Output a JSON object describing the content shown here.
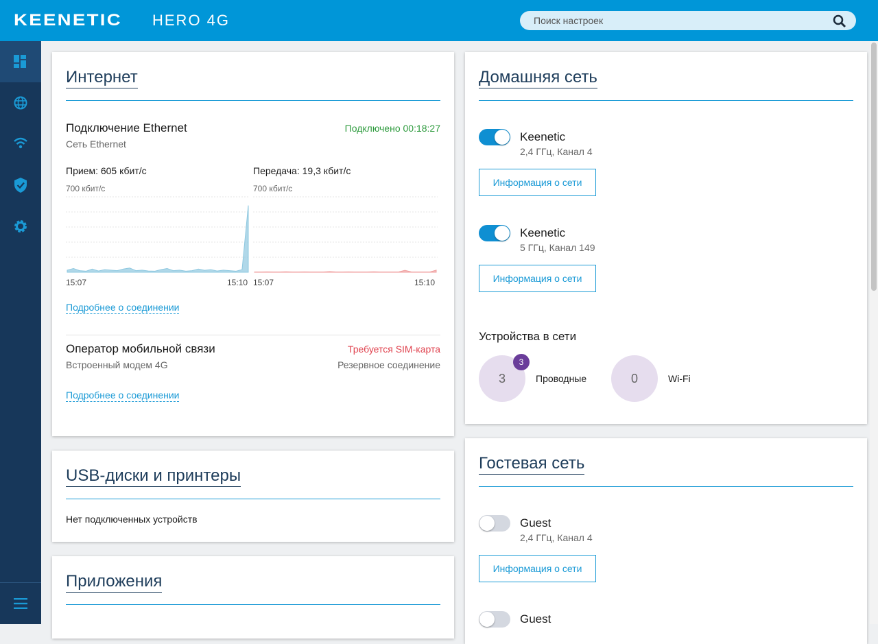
{
  "header": {
    "brand": "KEENETIC",
    "model": "HERO 4G",
    "search_placeholder": "Поиск настроек"
  },
  "internet": {
    "title": "Интернет",
    "ethernet": {
      "name": "Подключение Ethernet",
      "status": "Подключено 00:18:27",
      "subtitle": "Сеть Ethernet",
      "rx": {
        "label": "Прием: 605 кбит/с",
        "scale_label": "700 кбит/с",
        "x_start": "15:07",
        "x_end": "15:10",
        "ylim": [
          0,
          700
        ],
        "color": "#8ec8e0",
        "values": [
          20,
          35,
          15,
          10,
          30,
          12,
          25,
          20,
          15,
          30,
          40,
          15,
          20,
          12,
          10,
          25,
          35,
          15,
          20,
          10,
          15,
          30,
          18,
          25,
          12,
          20,
          15,
          10,
          25,
          620
        ]
      },
      "tx": {
        "label": "Передача: 19,3 кбит/с",
        "scale_label": "700 кбит/с",
        "x_start": "15:07",
        "x_end": "15:10",
        "ylim": [
          0,
          700
        ],
        "color": "#f0a0a0",
        "values": [
          3,
          3,
          4,
          3,
          3,
          5,
          3,
          3,
          4,
          3,
          3,
          3,
          6,
          3,
          3,
          4,
          3,
          3,
          3,
          5,
          3,
          3,
          3,
          3,
          18,
          4,
          3,
          3,
          3,
          20
        ]
      },
      "details": "Подробнее о соединении"
    },
    "mobile": {
      "name": "Оператор мобильной связи",
      "status": "Требуется SIM-карта",
      "subtitle": "Встроенный модем 4G",
      "note": "Резервное соединение",
      "details": "Подробнее о соединении"
    }
  },
  "usb": {
    "title": "USB-диски и принтеры",
    "text": "Нет подключенных устройств"
  },
  "apps": {
    "title": "Приложения"
  },
  "home": {
    "title": "Домашняя сеть",
    "networks": [
      {
        "name": "Keenetic",
        "band": "2,4 ГГц, Канал 4",
        "button": "Информация о сети",
        "enabled": true
      },
      {
        "name": "Keenetic",
        "band": "5 ГГц, Канал 149",
        "button": "Информация о сети",
        "enabled": true
      }
    ],
    "devices": {
      "title": "Устройства в сети",
      "wired": {
        "count": 3,
        "badge": 3,
        "label": "Проводные"
      },
      "wifi": {
        "count": 0,
        "label": "Wi-Fi"
      }
    }
  },
  "guest": {
    "title": "Гостевая сеть",
    "networks": [
      {
        "name": "Guest",
        "band": "2,4 ГГц, Канал 4",
        "button": "Информация о сети",
        "enabled": false
      },
      {
        "name": "Guest",
        "enabled": false
      }
    ]
  }
}
